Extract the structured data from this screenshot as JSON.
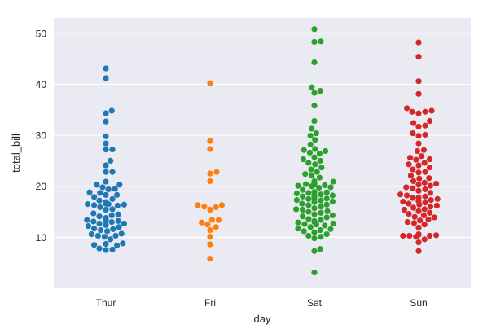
{
  "chart_data": {
    "type": "scatter",
    "subtype": "swarm",
    "categories": [
      "Thur",
      "Fri",
      "Sat",
      "Sun"
    ],
    "xlabel": "day",
    "ylabel": "total_bill",
    "ylim": [
      0,
      53
    ],
    "yticks": [
      10,
      20,
      30,
      40,
      50
    ],
    "grid": true,
    "legend": "none",
    "background": "#eaeaf2",
    "series": [
      {
        "category": "Thur",
        "color": "#1f77b4",
        "values": [
          43.1,
          41.2,
          34.8,
          34.3,
          32.7,
          29.8,
          28.4,
          27.2,
          27.2,
          25.0,
          24.1,
          22.8,
          22.8,
          20.9,
          20.3,
          20.3,
          19.8,
          19.5,
          19.4,
          18.8,
          18.7,
          18.3,
          18.3,
          17.9,
          17.5,
          17.2,
          16.9,
          16.7,
          16.6,
          16.5,
          16.5,
          16.4,
          16.3,
          16.2,
          15.9,
          15.5,
          15.4,
          14.7,
          14.5,
          14.3,
          14.1,
          13.8,
          13.5,
          13.4,
          13.3,
          13.2,
          13.1,
          13.0,
          12.7,
          12.7,
          12.4,
          12.2,
          12.0,
          11.7,
          11.6,
          11.4,
          11.2,
          10.7,
          10.6,
          10.3,
          10.3,
          10.1,
          9.6,
          8.8,
          8.7,
          8.5,
          8.4,
          7.8,
          7.6,
          7.5
        ]
      },
      {
        "category": "Fri",
        "color": "#ff7f0e",
        "values": [
          40.2,
          28.9,
          27.3,
          22.8,
          22.5,
          21.0,
          16.3,
          16.3,
          16.0,
          15.9,
          15.4,
          13.4,
          13.4,
          12.9,
          12.5,
          12.0,
          11.4,
          10.1,
          8.6,
          5.8
        ]
      },
      {
        "category": "Sat",
        "color": "#2ca02c",
        "values": [
          50.8,
          48.4,
          48.3,
          44.3,
          39.4,
          38.7,
          38.3,
          35.8,
          32.8,
          31.3,
          30.4,
          29.9,
          29.1,
          28.2,
          27.3,
          27.1,
          26.9,
          26.6,
          26.4,
          25.7,
          25.3,
          25.0,
          24.6,
          24.3,
          23.7,
          23.3,
          22.8,
          22.4,
          22.1,
          21.7,
          21.0,
          20.9,
          20.8,
          20.7,
          20.6,
          20.5,
          20.4,
          20.3,
          20.2,
          20.1,
          20.0,
          19.8,
          19.7,
          19.3,
          18.9,
          18.8,
          18.7,
          18.6,
          18.4,
          18.3,
          18.2,
          18.1,
          18.0,
          17.8,
          17.7,
          17.6,
          17.5,
          17.3,
          17.2,
          17.0,
          16.9,
          16.6,
          16.4,
          16.3,
          16.0,
          15.7,
          15.5,
          15.4,
          15.1,
          15.0,
          14.8,
          14.5,
          14.3,
          14.1,
          13.9,
          13.6,
          13.4,
          13.2,
          13.0,
          12.9,
          12.7,
          12.6,
          12.5,
          12.3,
          12.0,
          11.7,
          11.6,
          11.4,
          11.2,
          11.0,
          10.6,
          10.3,
          10.1,
          9.8,
          7.7,
          7.3,
          3.1
        ]
      },
      {
        "category": "Sun",
        "color": "#d62728",
        "values": [
          48.2,
          45.4,
          40.6,
          38.1,
          35.3,
          34.8,
          34.6,
          34.6,
          34.3,
          32.8,
          32.4,
          31.9,
          31.7,
          30.4,
          30.1,
          29.9,
          28.4,
          27.1,
          26.9,
          25.9,
          25.6,
          25.3,
          25.2,
          24.6,
          24.3,
          24.1,
          23.7,
          23.3,
          22.8,
          22.7,
          22.1,
          21.6,
          21.5,
          21.0,
          20.7,
          20.5,
          20.3,
          20.1,
          19.8,
          19.6,
          19.4,
          19.1,
          18.7,
          18.4,
          18.2,
          18.0,
          17.8,
          17.7,
          17.5,
          17.3,
          17.1,
          17.0,
          16.8,
          16.6,
          16.4,
          16.2,
          16.0,
          15.8,
          15.5,
          15.4,
          15.1,
          14.8,
          14.6,
          14.3,
          14.0,
          13.9,
          13.5,
          13.3,
          13.0,
          12.8,
          12.5,
          11.9,
          10.6,
          10.5,
          10.4,
          10.3,
          10.3,
          10.3,
          10.1,
          9.6,
          9.0,
          7.3
        ]
      }
    ]
  }
}
